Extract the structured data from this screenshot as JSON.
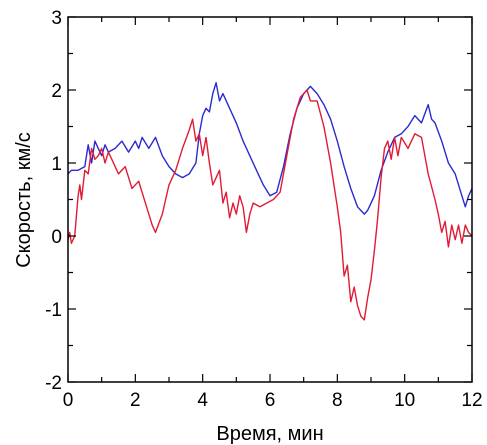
{
  "chart_data": {
    "type": "line",
    "title": "",
    "xlabel": "Время, мин",
    "ylabel": "Скорость, км/с",
    "xlim": [
      0,
      12
    ],
    "ylim": [
      -2,
      3
    ],
    "xticks": [
      "0",
      "2",
      "4",
      "6",
      "8",
      "10",
      "12"
    ],
    "yticks": [
      "-2",
      "-1",
      "0",
      "1",
      "2",
      "3"
    ],
    "grid": false,
    "legend": "none",
    "series": [
      {
        "color": "#2b2bd0",
        "points": [
          [
            0.0,
            0.85
          ],
          [
            0.1,
            0.9
          ],
          [
            0.3,
            0.9
          ],
          [
            0.5,
            0.95
          ],
          [
            0.6,
            1.25
          ],
          [
            0.7,
            1.0
          ],
          [
            0.8,
            1.3
          ],
          [
            0.9,
            1.2
          ],
          [
            1.0,
            1.1
          ],
          [
            1.1,
            1.25
          ],
          [
            1.2,
            1.15
          ],
          [
            1.4,
            1.2
          ],
          [
            1.6,
            1.3
          ],
          [
            1.8,
            1.15
          ],
          [
            2.0,
            1.3
          ],
          [
            2.1,
            1.2
          ],
          [
            2.2,
            1.35
          ],
          [
            2.4,
            1.2
          ],
          [
            2.6,
            1.35
          ],
          [
            2.8,
            1.1
          ],
          [
            3.0,
            0.95
          ],
          [
            3.2,
            0.85
          ],
          [
            3.4,
            0.8
          ],
          [
            3.6,
            0.85
          ],
          [
            3.8,
            1.0
          ],
          [
            3.9,
            1.4
          ],
          [
            4.0,
            1.65
          ],
          [
            4.1,
            1.75
          ],
          [
            4.2,
            1.7
          ],
          [
            4.3,
            1.95
          ],
          [
            4.4,
            2.1
          ],
          [
            4.5,
            1.85
          ],
          [
            4.6,
            1.95
          ],
          [
            4.8,
            1.75
          ],
          [
            5.0,
            1.55
          ],
          [
            5.2,
            1.3
          ],
          [
            5.4,
            1.1
          ],
          [
            5.6,
            0.9
          ],
          [
            5.8,
            0.7
          ],
          [
            6.0,
            0.55
          ],
          [
            6.2,
            0.6
          ],
          [
            6.4,
            0.95
          ],
          [
            6.6,
            1.4
          ],
          [
            6.8,
            1.75
          ],
          [
            7.0,
            1.95
          ],
          [
            7.2,
            2.05
          ],
          [
            7.4,
            1.95
          ],
          [
            7.6,
            1.8
          ],
          [
            7.8,
            1.6
          ],
          [
            8.0,
            1.3
          ],
          [
            8.2,
            0.95
          ],
          [
            8.4,
            0.65
          ],
          [
            8.6,
            0.4
          ],
          [
            8.8,
            0.3
          ],
          [
            8.9,
            0.35
          ],
          [
            9.1,
            0.55
          ],
          [
            9.3,
            0.9
          ],
          [
            9.5,
            1.15
          ],
          [
            9.7,
            1.35
          ],
          [
            9.9,
            1.4
          ],
          [
            10.1,
            1.5
          ],
          [
            10.3,
            1.65
          ],
          [
            10.5,
            1.55
          ],
          [
            10.7,
            1.8
          ],
          [
            10.8,
            1.6
          ],
          [
            10.9,
            1.55
          ],
          [
            11.1,
            1.3
          ],
          [
            11.3,
            1.0
          ],
          [
            11.5,
            0.85
          ],
          [
            11.7,
            0.55
          ],
          [
            11.8,
            0.4
          ],
          [
            11.9,
            0.55
          ],
          [
            12.0,
            0.65
          ]
        ]
      },
      {
        "color": "#e11b35",
        "points": [
          [
            0.0,
            -0.05
          ],
          [
            0.05,
            0.05
          ],
          [
            0.1,
            -0.1
          ],
          [
            0.2,
            0.0
          ],
          [
            0.3,
            0.55
          ],
          [
            0.35,
            0.7
          ],
          [
            0.4,
            0.5
          ],
          [
            0.5,
            0.9
          ],
          [
            0.6,
            0.85
          ],
          [
            0.7,
            1.2
          ],
          [
            0.8,
            1.05
          ],
          [
            0.9,
            1.1
          ],
          [
            1.0,
            1.2
          ],
          [
            1.1,
            1.0
          ],
          [
            1.2,
            1.15
          ],
          [
            1.3,
            1.05
          ],
          [
            1.5,
            0.85
          ],
          [
            1.7,
            0.95
          ],
          [
            1.9,
            0.65
          ],
          [
            2.1,
            0.75
          ],
          [
            2.3,
            0.45
          ],
          [
            2.5,
            0.15
          ],
          [
            2.6,
            0.05
          ],
          [
            2.8,
            0.3
          ],
          [
            3.0,
            0.7
          ],
          [
            3.2,
            0.9
          ],
          [
            3.4,
            1.2
          ],
          [
            3.6,
            1.45
          ],
          [
            3.7,
            1.6
          ],
          [
            3.8,
            1.3
          ],
          [
            3.9,
            1.4
          ],
          [
            4.0,
            1.1
          ],
          [
            4.1,
            1.35
          ],
          [
            4.2,
            1.0
          ],
          [
            4.3,
            0.7
          ],
          [
            4.5,
            0.9
          ],
          [
            4.6,
            0.45
          ],
          [
            4.7,
            0.6
          ],
          [
            4.8,
            0.25
          ],
          [
            4.9,
            0.45
          ],
          [
            5.0,
            0.3
          ],
          [
            5.1,
            0.55
          ],
          [
            5.2,
            0.4
          ],
          [
            5.3,
            0.05
          ],
          [
            5.4,
            0.3
          ],
          [
            5.5,
            0.45
          ],
          [
            5.7,
            0.4
          ],
          [
            5.9,
            0.45
          ],
          [
            6.1,
            0.5
          ],
          [
            6.3,
            0.6
          ],
          [
            6.5,
            1.1
          ],
          [
            6.7,
            1.6
          ],
          [
            6.9,
            1.9
          ],
          [
            7.1,
            2.0
          ],
          [
            7.2,
            1.85
          ],
          [
            7.4,
            1.85
          ],
          [
            7.6,
            1.5
          ],
          [
            7.8,
            1.0
          ],
          [
            8.0,
            0.4
          ],
          [
            8.1,
            0.05
          ],
          [
            8.2,
            -0.55
          ],
          [
            8.3,
            -0.4
          ],
          [
            8.4,
            -0.9
          ],
          [
            8.5,
            -0.7
          ],
          [
            8.6,
            -0.95
          ],
          [
            8.7,
            -1.1
          ],
          [
            8.8,
            -1.15
          ],
          [
            8.9,
            -0.85
          ],
          [
            9.0,
            -0.6
          ],
          [
            9.1,
            -0.2
          ],
          [
            9.2,
            0.25
          ],
          [
            9.3,
            0.8
          ],
          [
            9.4,
            1.2
          ],
          [
            9.5,
            1.3
          ],
          [
            9.6,
            1.05
          ],
          [
            9.7,
            1.35
          ],
          [
            9.8,
            1.1
          ],
          [
            9.9,
            1.35
          ],
          [
            10.1,
            1.2
          ],
          [
            10.3,
            1.4
          ],
          [
            10.5,
            1.35
          ],
          [
            10.7,
            0.85
          ],
          [
            10.9,
            0.5
          ],
          [
            11.0,
            0.3
          ],
          [
            11.1,
            0.05
          ],
          [
            11.2,
            0.2
          ],
          [
            11.3,
            -0.15
          ],
          [
            11.4,
            0.15
          ],
          [
            11.5,
            -0.05
          ],
          [
            11.6,
            0.15
          ],
          [
            11.7,
            -0.1
          ],
          [
            11.8,
            0.15
          ],
          [
            11.9,
            0.05
          ],
          [
            12.0,
            0.0
          ]
        ]
      }
    ]
  }
}
